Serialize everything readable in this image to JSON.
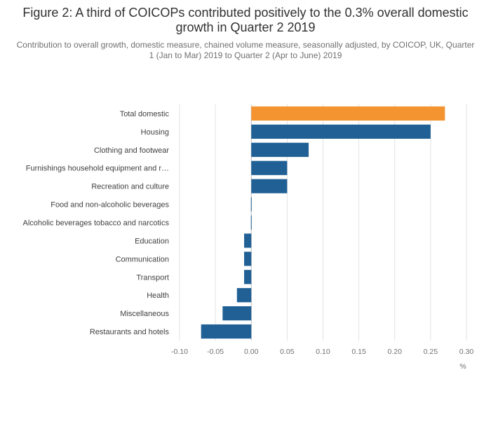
{
  "title": "Figure 2: A third of COICOPs contributed positively to the 0.3% overall domestic growth in Quarter 2 2019",
  "subtitle": "Contribution to overall growth, domestic measure, chained volume measure, seasonally adjusted, by COICOP, UK, Quarter 1 (Jan to Mar) 2019 to Quarter 2 (Apr to June) 2019",
  "colors": {
    "highlight": "#f39431",
    "bar": "#206095",
    "grid": "#e2e2e3",
    "axis": "#bebebf"
  },
  "chart_data": {
    "type": "bar",
    "orientation": "horizontal",
    "categories": [
      "Total domestic",
      "Housing",
      "Clothing and footwear",
      "Furnishings household equipment and r…",
      "Recreation and culture",
      "Food and non-alcoholic beverages",
      "Alcoholic beverages tobacco and narcotics",
      "Education",
      "Communication",
      "Transport",
      "Health",
      "Miscellaneous",
      "Restaurants and hotels"
    ],
    "values": [
      0.27,
      0.25,
      0.08,
      0.05,
      0.05,
      0.0,
      0.0,
      -0.01,
      -0.01,
      -0.01,
      -0.02,
      -0.04,
      -0.07
    ],
    "highlight_index": 0,
    "xlabel": "%",
    "xlim": [
      -0.1,
      0.3
    ],
    "xticks": [
      -0.1,
      -0.05,
      0,
      0.05,
      0.1,
      0.15,
      0.2,
      0.25,
      0.3
    ],
    "xtick_labels": [
      "-0.10",
      "-0.05",
      "0.00",
      "0.05",
      "0.10",
      "0.15",
      "0.20",
      "0.25",
      "0.30"
    ],
    "grid": true
  }
}
